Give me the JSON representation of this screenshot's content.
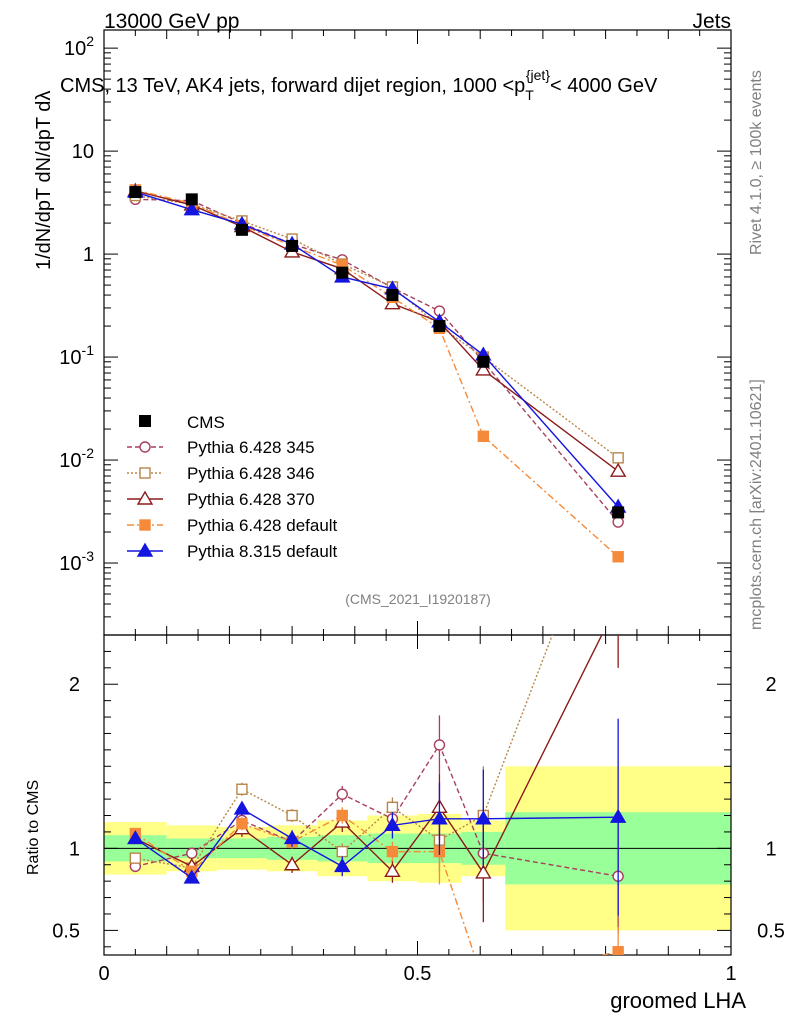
{
  "header": {
    "left": "13000 GeV pp",
    "right": "Jets"
  },
  "side_labels": {
    "rivet": "Rivet 4.1.0, ≥ 100k events",
    "mcplots": "mcplots.cern.ch [arXiv:2401.10621]"
  },
  "chart_data": {
    "type": "line",
    "title": "CMS, 13 TeV, AK4 jets, forward dijet region, 1000 <p_T^{jet}< 4000 GeV",
    "ylabel_top": "1/dN/dpT dN/dpT dλ",
    "xlabel": "groomed LHA",
    "ratio_ylabel": "Ratio to CMS",
    "analysis_id": "(CMS_2021_I1920187)",
    "x_range": [
      0,
      1
    ],
    "y_range_log": [
      0.0002,
      150
    ],
    "ratio_range": [
      0.35,
      2.3
    ],
    "x_tick_labels": [
      "0",
      "0.5",
      "1"
    ],
    "y_tick_labels": [
      {
        "value": 0.001,
        "base": "10",
        "exp": "-3"
      },
      {
        "value": 0.01,
        "base": "10",
        "exp": "-2"
      },
      {
        "value": 0.1,
        "base": "10",
        "exp": "-1"
      },
      {
        "value": 1,
        "base": "1",
        "exp": ""
      },
      {
        "value": 10,
        "base": "10",
        "exp": ""
      },
      {
        "value": 100,
        "base": "10",
        "exp": "2"
      }
    ],
    "ratio_tick_labels": [
      "0.5",
      "1",
      "2"
    ],
    "bin_edges": [
      0,
      0.1,
      0.18,
      0.26,
      0.34,
      0.42,
      0.5,
      0.57,
      0.64,
      1.0
    ],
    "data": {
      "name": "CMS",
      "x": [
        0.05,
        0.14,
        0.22,
        0.3,
        0.38,
        0.46,
        0.535,
        0.605,
        0.82
      ],
      "y": [
        4.0,
        3.4,
        1.72,
        1.2,
        0.66,
        0.4,
        0.2,
        0.09,
        0.0031
      ]
    },
    "bands": {
      "stat": [
        0.08,
        0.06,
        0.06,
        0.07,
        0.08,
        0.09,
        0.09,
        0.1,
        0.22
      ],
      "total": [
        0.16,
        0.14,
        0.13,
        0.14,
        0.17,
        0.2,
        0.21,
        0.17,
        0.5
      ]
    },
    "series": [
      {
        "name": "Pythia 6.428 345",
        "color": "#a83f5c",
        "dash": "5,3",
        "marker": "circle-open",
        "y": [
          3.4,
          3.3,
          2.0,
          1.25,
          0.88,
          0.47,
          0.28,
          0.09,
          0.0025
        ],
        "ratio": [
          0.89,
          0.97,
          1.17,
          1.04,
          1.33,
          1.18,
          1.63,
          0.97,
          0.83
        ],
        "ratio_err": [
          0.03,
          0.03,
          0.04,
          0.04,
          0.05,
          0.07,
          0.18,
          0.3,
          0.35
        ]
      },
      {
        "name": "Pythia 6.428 346",
        "color": "#b8864a",
        "dash": "2,2",
        "marker": "square-open",
        "y": [
          3.7,
          3.05,
          2.1,
          1.4,
          0.8,
          0.48,
          0.2,
          0.1,
          0.0105
        ],
        "ratio": [
          0.94,
          0.88,
          1.36,
          1.2,
          0.98,
          1.25,
          1.05,
          1.2,
          3.35
        ],
        "ratio_err": [
          0.03,
          0.03,
          0.04,
          0.04,
          0.05,
          0.06,
          0.2,
          0.3,
          0.4
        ]
      },
      {
        "name": "Pythia 6.428 370",
        "color": "#8b1b1b",
        "dash": "",
        "marker": "triangle-open",
        "y": [
          4.1,
          3.0,
          1.85,
          1.05,
          0.72,
          0.33,
          0.22,
          0.075,
          0.0078
        ],
        "ratio": [
          1.06,
          0.89,
          1.12,
          0.9,
          1.16,
          0.86,
          1.25,
          0.85,
          2.5
        ],
        "ratio_err": [
          0.03,
          0.03,
          0.05,
          0.05,
          0.06,
          0.07,
          0.2,
          0.3,
          0.4
        ]
      },
      {
        "name": "Pythia 6.428 default",
        "color": "#f58b3a",
        "dash": "7,3,2,3",
        "marker": "square",
        "y": [
          4.2,
          3.1,
          1.9,
          1.2,
          0.78,
          0.38,
          0.19,
          0.017,
          0.00115
        ],
        "ratio": [
          1.09,
          0.86,
          1.15,
          1.04,
          1.2,
          0.98,
          0.98,
          0.19,
          0.37
        ],
        "ratio_err": [
          0.03,
          0.03,
          0.04,
          0.04,
          0.05,
          0.06,
          0.2,
          0.05,
          0.15
        ]
      },
      {
        "name": "Pythia 8.315 default",
        "color": "#1515e0",
        "dash": "",
        "marker": "triangle",
        "y": [
          4.0,
          2.7,
          1.95,
          1.25,
          0.6,
          0.46,
          0.22,
          0.105,
          0.0035
        ],
        "ratio": [
          1.06,
          0.82,
          1.24,
          1.06,
          0.89,
          1.14,
          1.18,
          1.18,
          1.19
        ],
        "ratio_err": [
          0.03,
          0.03,
          0.04,
          0.05,
          0.06,
          0.08,
          0.22,
          0.3,
          0.6
        ]
      }
    ],
    "legend_data_label": "CMS"
  }
}
